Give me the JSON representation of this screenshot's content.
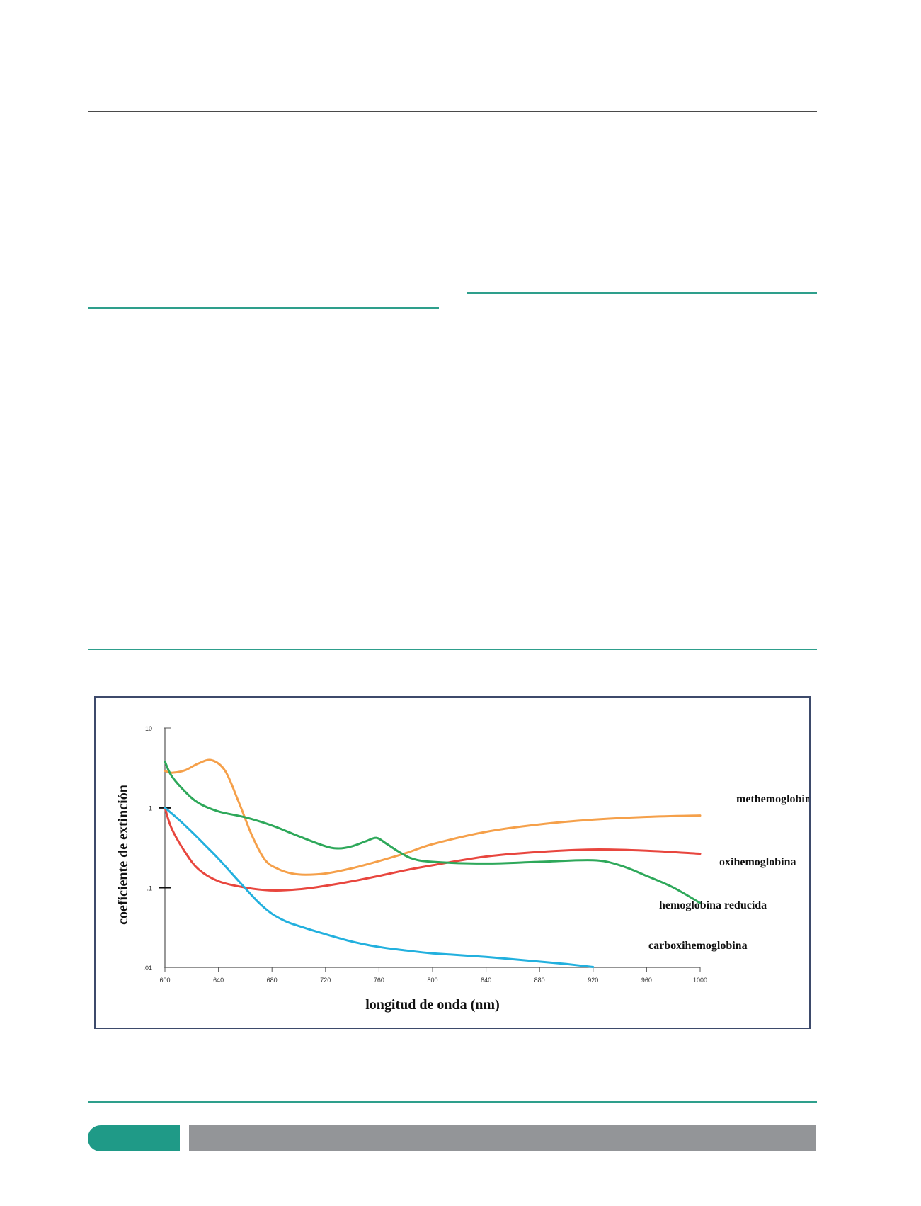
{
  "chart_data": {
    "type": "line",
    "xlabel": "longitud de onda (nm)",
    "ylabel": "coeficiente de extinción",
    "xlim": [
      600,
      1000
    ],
    "ylim": [
      0.01,
      10
    ],
    "yscale": "log",
    "x_ticks": [
      600,
      640,
      680,
      720,
      760,
      800,
      840,
      880,
      920,
      960,
      1000
    ],
    "x_tick_labels": [
      "600",
      "640",
      "680",
      "720",
      "760",
      "800",
      "840",
      "880",
      "920",
      "960",
      "1000"
    ],
    "y_ticks": [
      0.01,
      0.1,
      1,
      10
    ],
    "y_tick_labels": [
      ".01",
      ".1",
      "1",
      "10"
    ],
    "series": [
      {
        "name": "methemoglobina",
        "color": "#f5a04a",
        "x": [
          600,
          605,
          615,
          625,
          635,
          645,
          655,
          665,
          675,
          685,
          695,
          705,
          720,
          740,
          760,
          780,
          800,
          840,
          880,
          920,
          960,
          1000
        ],
        "y": [
          2.9,
          2.75,
          2.95,
          3.6,
          3.95,
          2.9,
          1.2,
          0.45,
          0.22,
          0.17,
          0.15,
          0.145,
          0.15,
          0.175,
          0.215,
          0.27,
          0.35,
          0.5,
          0.62,
          0.71,
          0.77,
          0.8
        ]
      },
      {
        "name": "oxihemoglobina",
        "color": "#e8463e",
        "x": [
          600,
          605,
          615,
          625,
          640,
          660,
          680,
          700,
          720,
          740,
          760,
          780,
          800,
          840,
          880,
          920,
          960,
          1000
        ],
        "y": [
          1.0,
          0.55,
          0.28,
          0.17,
          0.12,
          0.1,
          0.092,
          0.095,
          0.105,
          0.12,
          0.14,
          0.165,
          0.19,
          0.245,
          0.28,
          0.3,
          0.29,
          0.265
        ]
      },
      {
        "name": "hemoglobina reducida",
        "color": "#2ea85a",
        "x": [
          600,
          605,
          615,
          625,
          640,
          660,
          680,
          700,
          720,
          730,
          740,
          750,
          758,
          765,
          775,
          785,
          800,
          840,
          880,
          920,
          940,
          960,
          980,
          1000
        ],
        "y": [
          3.8,
          2.5,
          1.6,
          1.15,
          0.9,
          0.76,
          0.6,
          0.44,
          0.33,
          0.31,
          0.33,
          0.38,
          0.42,
          0.36,
          0.28,
          0.23,
          0.21,
          0.2,
          0.21,
          0.22,
          0.19,
          0.14,
          0.1,
          0.064
        ]
      },
      {
        "name": "carboxihemoglobina",
        "color": "#22b0de",
        "x": [
          600,
          610,
          620,
          630,
          640,
          650,
          660,
          670,
          680,
          690,
          700,
          720,
          740,
          760,
          780,
          800,
          840,
          880,
          900,
          920
        ],
        "y": [
          1.0,
          0.72,
          0.5,
          0.34,
          0.23,
          0.15,
          0.098,
          0.065,
          0.047,
          0.038,
          0.033,
          0.026,
          0.021,
          0.018,
          0.0163,
          0.015,
          0.0135,
          0.0118,
          0.011,
          0.0101
        ]
      }
    ],
    "legend": "inline labels at the right end of each curve",
    "grid": false
  }
}
